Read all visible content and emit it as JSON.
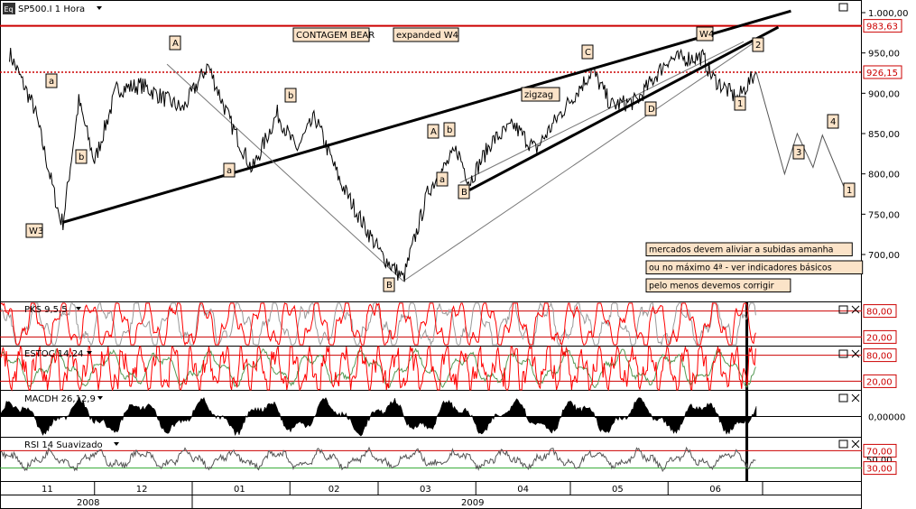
{
  "app": {
    "logo": "Eq"
  },
  "chart_data": [
    {
      "type": "line",
      "pane": "price",
      "title": "SP500.I 1 Hora",
      "ylim": [
        640,
        1010
      ],
      "y_ticks": [
        "1.000,00",
        "950,00",
        "900,00",
        "850,00",
        "800,00",
        "750,00",
        "700,00"
      ],
      "reference_lines": [
        {
          "value": 983.63,
          "label": "983,63",
          "color": "#cc0000"
        },
        {
          "value": 926.15,
          "label": "926,15",
          "color": "#cc0000",
          "style": "dotted"
        }
      ],
      "x_months": [
        "11",
        "12",
        "01",
        "02",
        "03",
        "04",
        "05",
        "06"
      ],
      "x_years": [
        "2008",
        "2009"
      ],
      "approx_price_path": [
        {
          "date": "2008-11-04",
          "value": 950
        },
        {
          "date": "2008-11-12",
          "value": 880
        },
        {
          "date": "2008-11-20",
          "value": 745
        },
        {
          "date": "2008-11-21",
          "value": 740
        },
        {
          "date": "2008-11-26",
          "value": 890
        },
        {
          "date": "2008-12-01",
          "value": 815
        },
        {
          "date": "2008-12-08",
          "value": 905
        },
        {
          "date": "2008-12-16",
          "value": 910
        },
        {
          "date": "2008-12-29",
          "value": 880
        },
        {
          "date": "2009-01-06",
          "value": 935
        },
        {
          "date": "2009-01-13",
          "value": 865
        },
        {
          "date": "2009-01-20",
          "value": 805
        },
        {
          "date": "2009-01-28",
          "value": 875
        },
        {
          "date": "2009-02-03",
          "value": 830
        },
        {
          "date": "2009-02-09",
          "value": 870
        },
        {
          "date": "2009-02-17",
          "value": 790
        },
        {
          "date": "2009-02-24",
          "value": 740
        },
        {
          "date": "2009-03-02",
          "value": 700
        },
        {
          "date": "2009-03-09",
          "value": 670
        },
        {
          "date": "2009-03-17",
          "value": 780
        },
        {
          "date": "2009-03-26",
          "value": 830
        },
        {
          "date": "2009-03-30",
          "value": 790
        },
        {
          "date": "2009-04-06",
          "value": 840
        },
        {
          "date": "2009-04-13",
          "value": 860
        },
        {
          "date": "2009-04-20",
          "value": 830
        },
        {
          "date": "2009-04-27",
          "value": 870
        },
        {
          "date": "2009-05-08",
          "value": 928
        },
        {
          "date": "2009-05-14",
          "value": 885
        },
        {
          "date": "2009-05-22",
          "value": 890
        },
        {
          "date": "2009-06-01",
          "value": 942
        },
        {
          "date": "2009-06-12",
          "value": 945
        },
        {
          "date": "2009-06-15",
          "value": 920
        },
        {
          "date": "2009-06-23",
          "value": 893
        },
        {
          "date": "2009-06-29",
          "value": 926
        }
      ],
      "wave_labels": [
        "W3",
        "A",
        "a",
        "b",
        "a",
        "b",
        "B",
        "A",
        "b",
        "a",
        "B",
        "zigzag",
        "C",
        "D",
        "W4",
        "2",
        "1",
        "3",
        "4",
        "1"
      ],
      "annotations": [
        "CONTAGEM BEAR",
        "expanded W4",
        "mercados devem aliviar a subidas amanha",
        "ou no máximo 4ª - ver indicadores básicos",
        "pelo menos devemos corrigir"
      ]
    },
    {
      "type": "line",
      "pane": "pks",
      "title": "PKS 9,5,5",
      "ylim": [
        0,
        100
      ],
      "y_ticks": [
        "80,00",
        "20,00"
      ],
      "series": [
        {
          "color": "#ff0000"
        },
        {
          "color": "#999999"
        }
      ]
    },
    {
      "type": "line",
      "pane": "estoc",
      "title": "ESTOC 14,24",
      "ylim": [
        0,
        100
      ],
      "y_ticks": [
        "80,00",
        "20,00"
      ],
      "series": [
        {
          "color": "#ff0000"
        },
        {
          "color": "#559955"
        }
      ]
    },
    {
      "type": "area",
      "pane": "macdh",
      "title": "MACDH 26,12,9",
      "y_ticks": [
        "0,00000"
      ],
      "series": [
        {
          "color": "#000000"
        }
      ]
    },
    {
      "type": "line",
      "pane": "rsi",
      "title": "RSI 14 Suavizado",
      "ylim": [
        0,
        100
      ],
      "y_ticks": [
        "70,00",
        "50,00",
        "30,00"
      ],
      "series": [
        {
          "color": "#555555"
        }
      ]
    }
  ]
}
